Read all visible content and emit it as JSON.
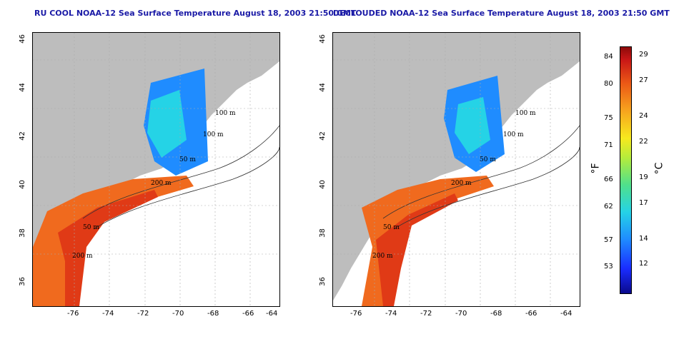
{
  "left_map": {
    "title": "RU COOL NOAA-12 Sea Surface Temperature August 18, 2003 21:50 GMT"
  },
  "right_map": {
    "title": "DECLOUDED NOAA-12 Sea Surface Temperature August 18, 2003 21:50 GMT"
  },
  "axes": {
    "x_ticks": [
      "-76",
      "-74",
      "-72",
      "-70",
      "-68",
      "-66",
      "-64"
    ],
    "y_ticks": [
      "36",
      "38",
      "40",
      "42",
      "44",
      "46"
    ]
  },
  "contour_labels": [
    "100 m",
    "100 m",
    "50 m",
    "200 m",
    "50 m",
    "200 m"
  ],
  "colorbar": {
    "fahrenheit_ticks": [
      "84",
      "80",
      "75",
      "71",
      "66",
      "62",
      "57",
      "53"
    ],
    "celsius_ticks": [
      "29",
      "27",
      "24",
      "22",
      "19",
      "17",
      "14",
      "12"
    ],
    "fahrenheit_unit": "°F",
    "celsius_unit": "°C"
  },
  "colors": {
    "title": "#1a1aa6",
    "land": "#bdbdbd",
    "ocean": "#ffffff"
  }
}
